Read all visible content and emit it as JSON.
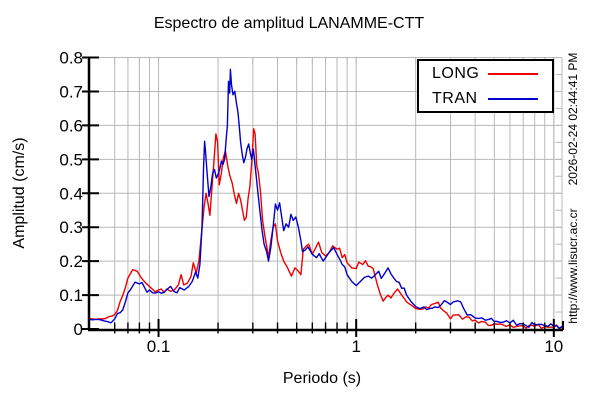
{
  "title": "Espectro de amplitud LANAMME-CTT",
  "xlabel": "Periodo (s)",
  "ylabel": "Amplitud (cm/s)",
  "watermarks": {
    "timestamp": "2026-02-24 02:44:41 PM",
    "url": "http://www.lisucr.ac.cr"
  },
  "legend": {
    "items": [
      {
        "label": "LONG",
        "color": "#ee0000"
      },
      {
        "label": "TRAN",
        "color": "#0000cc"
      }
    ]
  },
  "colors": {
    "grid": "#b8b8b8",
    "axis": "#000000",
    "background": "#ffffff"
  },
  "chart_data": {
    "type": "line",
    "x_scale": "log",
    "xlim": [
      0.045,
      11
    ],
    "ylim": [
      0,
      0.8
    ],
    "x_ticks": [
      0.1,
      1,
      10
    ],
    "x_tick_labels": [
      "0.1",
      "1",
      "10"
    ],
    "y_ticks": [
      0,
      0.1,
      0.2,
      0.3,
      0.4,
      0.5,
      0.6,
      0.7,
      0.8
    ],
    "y_tick_labels": [
      "0",
      "0.1",
      "0.2",
      "0.3",
      "0.4",
      "0.5",
      "0.6",
      "0.7",
      "0.8"
    ],
    "grid": true,
    "legend_position": "top-right",
    "title": "Espectro de amplitud LANAMME-CTT",
    "xlabel": "Periodo (s)",
    "ylabel": "Amplitud (cm/s)",
    "series": [
      {
        "name": "LONG",
        "color": "#ee0000",
        "points": [
          [
            0.045,
            0.03
          ],
          [
            0.05,
            0.03
          ],
          [
            0.054,
            0.031
          ],
          [
            0.058,
            0.038
          ],
          [
            0.062,
            0.055
          ],
          [
            0.066,
            0.1
          ],
          [
            0.07,
            0.15
          ],
          [
            0.074,
            0.175
          ],
          [
            0.078,
            0.17
          ],
          [
            0.082,
            0.15
          ],
          [
            0.087,
            0.133
          ],
          [
            0.092,
            0.12
          ],
          [
            0.1,
            0.115
          ],
          [
            0.11,
            0.118
          ],
          [
            0.12,
            0.115
          ],
          [
            0.126,
            0.13
          ],
          [
            0.13,
            0.16
          ],
          [
            0.134,
            0.13
          ],
          [
            0.14,
            0.135
          ],
          [
            0.146,
            0.155
          ],
          [
            0.15,
            0.195
          ],
          [
            0.155,
            0.165
          ],
          [
            0.16,
            0.2
          ],
          [
            0.165,
            0.28
          ],
          [
            0.17,
            0.36
          ],
          [
            0.174,
            0.4
          ],
          [
            0.178,
            0.37
          ],
          [
            0.182,
            0.335
          ],
          [
            0.187,
            0.43
          ],
          [
            0.191,
            0.5
          ],
          [
            0.195,
            0.575
          ],
          [
            0.199,
            0.55
          ],
          [
            0.203,
            0.425
          ],
          [
            0.208,
            0.46
          ],
          [
            0.213,
            0.505
          ],
          [
            0.218,
            0.525
          ],
          [
            0.224,
            0.48
          ],
          [
            0.23,
            0.45
          ],
          [
            0.236,
            0.43
          ],
          [
            0.242,
            0.395
          ],
          [
            0.248,
            0.37
          ],
          [
            0.254,
            0.4
          ],
          [
            0.26,
            0.38
          ],
          [
            0.266,
            0.35
          ],
          [
            0.272,
            0.32
          ],
          [
            0.278,
            0.33
          ],
          [
            0.284,
            0.385
          ],
          [
            0.29,
            0.42
          ],
          [
            0.296,
            0.49
          ],
          [
            0.303,
            0.59
          ],
          [
            0.308,
            0.575
          ],
          [
            0.314,
            0.48
          ],
          [
            0.32,
            0.46
          ],
          [
            0.328,
            0.405
          ],
          [
            0.336,
            0.32
          ],
          [
            0.344,
            0.28
          ],
          [
            0.352,
            0.245
          ],
          [
            0.36,
            0.21
          ],
          [
            0.37,
            0.26
          ],
          [
            0.38,
            0.3
          ],
          [
            0.39,
            0.31
          ],
          [
            0.4,
            0.26
          ],
          [
            0.415,
            0.225
          ],
          [
            0.43,
            0.2
          ],
          [
            0.45,
            0.18
          ],
          [
            0.47,
            0.156
          ],
          [
            0.49,
            0.18
          ],
          [
            0.51,
            0.17
          ],
          [
            0.525,
            0.16
          ],
          [
            0.54,
            0.235
          ],
          [
            0.56,
            0.245
          ],
          [
            0.575,
            0.25
          ],
          [
            0.6,
            0.22
          ],
          [
            0.625,
            0.24
          ],
          [
            0.645,
            0.256
          ],
          [
            0.67,
            0.225
          ],
          [
            0.7,
            0.215
          ],
          [
            0.73,
            0.225
          ],
          [
            0.76,
            0.245
          ],
          [
            0.8,
            0.235
          ],
          [
            0.85,
            0.21
          ],
          [
            0.9,
            0.195
          ],
          [
            0.95,
            0.18
          ],
          [
            1.0,
            0.178
          ],
          [
            1.03,
            0.197
          ],
          [
            1.08,
            0.19
          ],
          [
            1.15,
            0.185
          ],
          [
            1.22,
            0.178
          ],
          [
            1.28,
            0.13
          ],
          [
            1.37,
            0.082
          ],
          [
            1.45,
            0.1
          ],
          [
            1.55,
            0.105
          ],
          [
            1.62,
            0.118
          ],
          [
            1.7,
            0.1
          ],
          [
            1.8,
            0.08
          ],
          [
            1.9,
            0.07
          ],
          [
            2.0,
            0.06
          ],
          [
            2.1,
            0.058
          ],
          [
            2.25,
            0.065
          ],
          [
            2.4,
            0.072
          ],
          [
            2.6,
            0.079
          ],
          [
            2.75,
            0.055
          ],
          [
            3.0,
            0.03
          ],
          [
            3.3,
            0.042
          ],
          [
            3.6,
            0.036
          ],
          [
            4.0,
            0.026
          ],
          [
            4.5,
            0.02
          ],
          [
            5.0,
            0.016
          ],
          [
            5.5,
            0.013
          ],
          [
            6.0,
            0.012
          ],
          [
            7.0,
            0.01
          ],
          [
            8.0,
            0.008
          ],
          [
            9.0,
            0.007
          ],
          [
            10.0,
            0.006
          ],
          [
            11.0,
            0.005
          ]
        ]
      },
      {
        "name": "TRAN",
        "color": "#0000cc",
        "points": [
          [
            0.045,
            0.028
          ],
          [
            0.05,
            0.028
          ],
          [
            0.055,
            0.022
          ],
          [
            0.06,
            0.03
          ],
          [
            0.064,
            0.048
          ],
          [
            0.068,
            0.08
          ],
          [
            0.072,
            0.115
          ],
          [
            0.076,
            0.138
          ],
          [
            0.08,
            0.133
          ],
          [
            0.085,
            0.122
          ],
          [
            0.09,
            0.115
          ],
          [
            0.1,
            0.11
          ],
          [
            0.11,
            0.116
          ],
          [
            0.12,
            0.11
          ],
          [
            0.128,
            0.122
          ],
          [
            0.135,
            0.115
          ],
          [
            0.142,
            0.125
          ],
          [
            0.148,
            0.14
          ],
          [
            0.154,
            0.168
          ],
          [
            0.158,
            0.15
          ],
          [
            0.162,
            0.19
          ],
          [
            0.166,
            0.3
          ],
          [
            0.169,
            0.48
          ],
          [
            0.171,
            0.553
          ],
          [
            0.173,
            0.52
          ],
          [
            0.176,
            0.46
          ],
          [
            0.18,
            0.39
          ],
          [
            0.184,
            0.42
          ],
          [
            0.188,
            0.46
          ],
          [
            0.192,
            0.47
          ],
          [
            0.196,
            0.445
          ],
          [
            0.2,
            0.455
          ],
          [
            0.204,
            0.47
          ],
          [
            0.208,
            0.495
          ],
          [
            0.212,
            0.485
          ],
          [
            0.216,
            0.5
          ],
          [
            0.22,
            0.56
          ],
          [
            0.223,
            0.6
          ],
          [
            0.226,
            0.73
          ],
          [
            0.229,
            0.695
          ],
          [
            0.231,
            0.765
          ],
          [
            0.234,
            0.72
          ],
          [
            0.238,
            0.69
          ],
          [
            0.243,
            0.7
          ],
          [
            0.247,
            0.67
          ],
          [
            0.252,
            0.64
          ],
          [
            0.256,
            0.6
          ],
          [
            0.26,
            0.55
          ],
          [
            0.265,
            0.515
          ],
          [
            0.27,
            0.49
          ],
          [
            0.275,
            0.505
          ],
          [
            0.28,
            0.53
          ],
          [
            0.286,
            0.545
          ],
          [
            0.291,
            0.52
          ],
          [
            0.296,
            0.5
          ],
          [
            0.302,
            0.53
          ],
          [
            0.31,
            0.465
          ],
          [
            0.318,
            0.405
          ],
          [
            0.326,
            0.345
          ],
          [
            0.334,
            0.29
          ],
          [
            0.342,
            0.25
          ],
          [
            0.352,
            0.228
          ],
          [
            0.36,
            0.2
          ],
          [
            0.37,
            0.24
          ],
          [
            0.38,
            0.3
          ],
          [
            0.39,
            0.368
          ],
          [
            0.4,
            0.35
          ],
          [
            0.41,
            0.372
          ],
          [
            0.42,
            0.33
          ],
          [
            0.43,
            0.29
          ],
          [
            0.442,
            0.31
          ],
          [
            0.455,
            0.3
          ],
          [
            0.468,
            0.338
          ],
          [
            0.48,
            0.32
          ],
          [
            0.495,
            0.33
          ],
          [
            0.51,
            0.3
          ],
          [
            0.525,
            0.26
          ],
          [
            0.535,
            0.228
          ],
          [
            0.55,
            0.232
          ],
          [
            0.57,
            0.242
          ],
          [
            0.6,
            0.22
          ],
          [
            0.63,
            0.21
          ],
          [
            0.65,
            0.222
          ],
          [
            0.68,
            0.2
          ],
          [
            0.7,
            0.21
          ],
          [
            0.73,
            0.226
          ],
          [
            0.77,
            0.24
          ],
          [
            0.8,
            0.22
          ],
          [
            0.85,
            0.19
          ],
          [
            0.9,
            0.16
          ],
          [
            0.95,
            0.14
          ],
          [
            1.0,
            0.128
          ],
          [
            1.05,
            0.14
          ],
          [
            1.1,
            0.152
          ],
          [
            1.15,
            0.156
          ],
          [
            1.2,
            0.15
          ],
          [
            1.25,
            0.16
          ],
          [
            1.3,
            0.17
          ],
          [
            1.38,
            0.16
          ],
          [
            1.45,
            0.18
          ],
          [
            1.5,
            0.162
          ],
          [
            1.55,
            0.15
          ],
          [
            1.6,
            0.14
          ],
          [
            1.7,
            0.12
          ],
          [
            1.8,
            0.1
          ],
          [
            1.9,
            0.08
          ],
          [
            2.0,
            0.066
          ],
          [
            2.1,
            0.06
          ],
          [
            2.2,
            0.065
          ],
          [
            2.35,
            0.06
          ],
          [
            2.5,
            0.065
          ],
          [
            2.7,
            0.072
          ],
          [
            2.9,
            0.078
          ],
          [
            3.1,
            0.08
          ],
          [
            3.26,
            0.083
          ],
          [
            3.5,
            0.06
          ],
          [
            3.8,
            0.042
          ],
          [
            4.0,
            0.032
          ],
          [
            4.5,
            0.026
          ],
          [
            5.0,
            0.022
          ],
          [
            5.3,
            0.02
          ],
          [
            6.0,
            0.018
          ],
          [
            7.0,
            0.015
          ],
          [
            8.0,
            0.012
          ],
          [
            9.0,
            0.01
          ],
          [
            10.0,
            0.009
          ],
          [
            11.0,
            0.008
          ]
        ]
      }
    ]
  }
}
